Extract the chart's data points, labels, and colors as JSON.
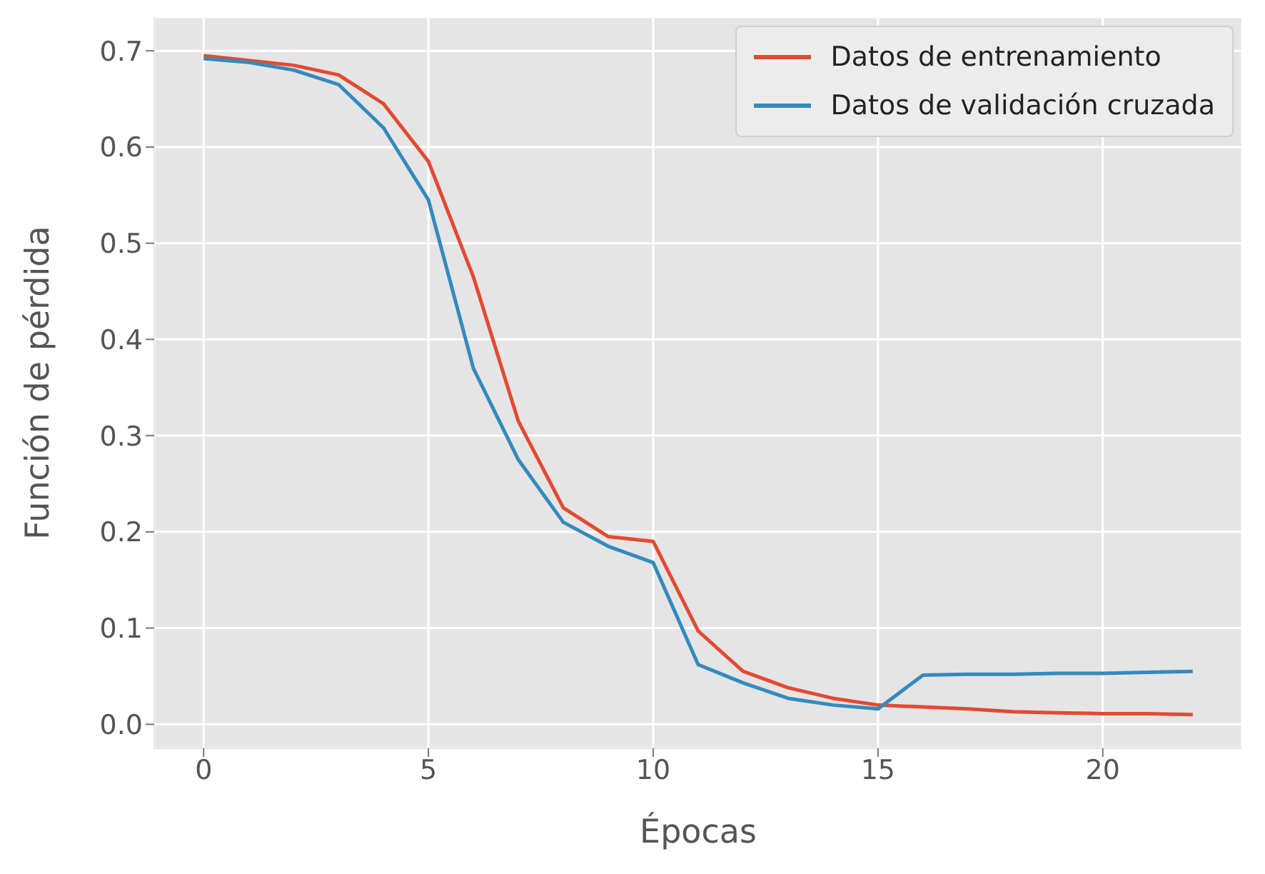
{
  "chart_data": {
    "type": "line",
    "xlabel": "Épocas",
    "ylabel": "Función de pérdida",
    "x": [
      0,
      1,
      2,
      3,
      4,
      5,
      6,
      7,
      8,
      9,
      10,
      11,
      12,
      13,
      14,
      15,
      16,
      17,
      18,
      19,
      20,
      21,
      22
    ],
    "series": [
      {
        "name": "Datos de entrenamiento",
        "color": "#e24a33",
        "values": [
          0.695,
          0.69,
          0.685,
          0.675,
          0.645,
          0.585,
          0.465,
          0.315,
          0.225,
          0.195,
          0.19,
          0.097,
          0.055,
          0.038,
          0.027,
          0.02,
          0.018,
          0.016,
          0.013,
          0.012,
          0.011,
          0.011,
          0.01
        ]
      },
      {
        "name": "Datos de validación cruzada",
        "color": "#348abd",
        "values": [
          0.692,
          0.688,
          0.68,
          0.665,
          0.62,
          0.545,
          0.37,
          0.275,
          0.21,
          0.185,
          0.168,
          0.062,
          0.043,
          0.027,
          0.02,
          0.016,
          0.051,
          0.052,
          0.052,
          0.053,
          0.053,
          0.054,
          0.055
        ]
      }
    ],
    "xlim": [
      -1.1,
      23.1
    ],
    "xticks": [
      0,
      5,
      10,
      15,
      20
    ],
    "ylim": [
      -0.025,
      0.735
    ],
    "yticks": [
      {
        "value": 0,
        "label": "0.0"
      },
      {
        "value": 0.1,
        "label": "0.1"
      },
      {
        "value": 0.2,
        "label": "0.2"
      },
      {
        "value": 0.3,
        "label": "0.3"
      },
      {
        "value": 0.4,
        "label": "0.4"
      },
      {
        "value": 0.5,
        "label": "0.5"
      },
      {
        "value": 0.6,
        "label": "0.6"
      },
      {
        "value": 0.7,
        "label": "0.7"
      }
    ],
    "grid": true,
    "legend": "top right",
    "marker": "none",
    "line_style": "solid"
  }
}
